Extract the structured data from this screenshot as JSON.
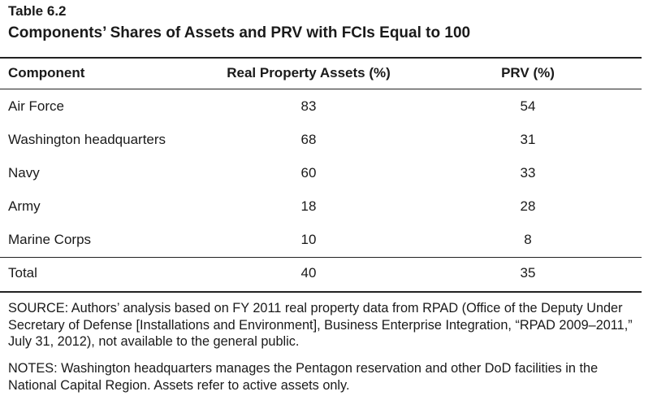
{
  "table": {
    "number": "Table 6.2",
    "title": "Components’ Shares of Assets and PRV with FCIs Equal to 100",
    "headers": [
      "Component",
      "Real Property Assets (%)",
      "PRV (%)"
    ],
    "rows": [
      [
        "Air Force",
        "83",
        "54"
      ],
      [
        "Washington headquarters",
        "68",
        "31"
      ],
      [
        "Navy",
        "60",
        "33"
      ],
      [
        "Army",
        "18",
        "28"
      ],
      [
        "Marine Corps",
        "10",
        "8"
      ]
    ],
    "total": [
      "Total",
      "40",
      "35"
    ]
  },
  "footnotes": {
    "source": "SOURCE: Authors’ analysis based on FY 2011 real property data from RPAD (Office of the Deputy Under Secretary of Defense [Installations and Environment], Business Enterprise Integration, “RPAD 2009–2011,” July 31, 2012), not available to the general public.",
    "notes": "NOTES: Washington headquarters manages the Pentagon reservation and other DoD facilities in the National Capital Region. Assets refer to active assets only."
  }
}
